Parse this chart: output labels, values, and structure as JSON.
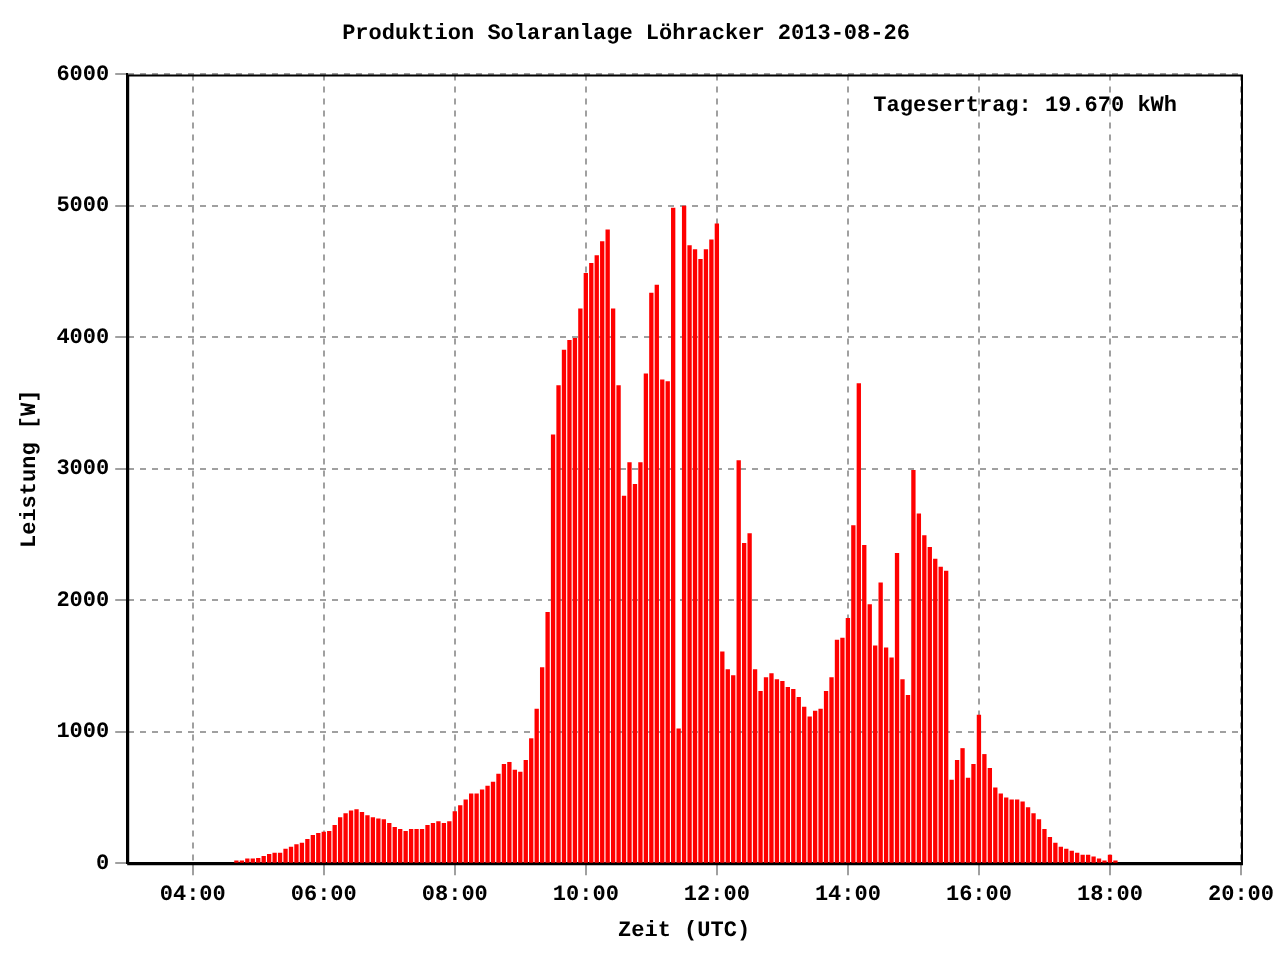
{
  "chart_data": {
    "type": "bar",
    "title": "Produktion Solaranlage Löhracker 2013-08-26",
    "xlabel": "Zeit (UTC)",
    "ylabel": "Leistung [W]",
    "annotations": [
      "Tagesertrag: 19.670 kWh"
    ],
    "x": [
      "2013-08-26T04:40",
      "2013-08-26T04:45",
      "2013-08-26T04:50",
      "2013-08-26T04:55",
      "2013-08-26T05:00",
      "2013-08-26T05:05",
      "2013-08-26T05:10",
      "2013-08-26T05:15",
      "2013-08-26T05:20",
      "2013-08-26T05:25",
      "2013-08-26T05:30",
      "2013-08-26T05:35",
      "2013-08-26T05:40",
      "2013-08-26T05:45",
      "2013-08-26T05:50",
      "2013-08-26T05:55",
      "2013-08-26T06:00",
      "2013-08-26T06:05",
      "2013-08-26T06:10",
      "2013-08-26T06:15",
      "2013-08-26T06:20",
      "2013-08-26T06:25",
      "2013-08-26T06:30",
      "2013-08-26T06:35",
      "2013-08-26T06:40",
      "2013-08-26T06:45",
      "2013-08-26T06:50",
      "2013-08-26T06:55",
      "2013-08-26T07:00",
      "2013-08-26T07:05",
      "2013-08-26T07:10",
      "2013-08-26T07:15",
      "2013-08-26T07:20",
      "2013-08-26T07:25",
      "2013-08-26T07:30",
      "2013-08-26T07:35",
      "2013-08-26T07:40",
      "2013-08-26T07:45",
      "2013-08-26T07:50",
      "2013-08-26T07:55",
      "2013-08-26T08:00",
      "2013-08-26T08:05",
      "2013-08-26T08:10",
      "2013-08-26T08:15",
      "2013-08-26T08:20",
      "2013-08-26T08:25",
      "2013-08-26T08:30",
      "2013-08-26T08:35",
      "2013-08-26T08:40",
      "2013-08-26T08:45",
      "2013-08-26T08:50",
      "2013-08-26T08:55",
      "2013-08-26T09:00",
      "2013-08-26T09:05",
      "2013-08-26T09:10",
      "2013-08-26T09:15",
      "2013-08-26T09:20",
      "2013-08-26T09:25",
      "2013-08-26T09:30",
      "2013-08-26T09:35",
      "2013-08-26T09:40",
      "2013-08-26T09:45",
      "2013-08-26T09:50",
      "2013-08-26T09:55",
      "2013-08-26T10:00",
      "2013-08-26T10:05",
      "2013-08-26T10:10",
      "2013-08-26T10:15",
      "2013-08-26T10:20",
      "2013-08-26T10:25",
      "2013-08-26T10:30",
      "2013-08-26T10:35",
      "2013-08-26T10:40",
      "2013-08-26T10:45",
      "2013-08-26T10:50",
      "2013-08-26T10:55",
      "2013-08-26T11:00",
      "2013-08-26T11:05",
      "2013-08-26T11:10",
      "2013-08-26T11:15",
      "2013-08-26T11:20",
      "2013-08-26T11:25",
      "2013-08-26T11:30",
      "2013-08-26T11:35",
      "2013-08-26T11:40",
      "2013-08-26T11:45",
      "2013-08-26T11:50",
      "2013-08-26T11:55",
      "2013-08-26T12:00",
      "2013-08-26T12:05",
      "2013-08-26T12:10",
      "2013-08-26T12:15",
      "2013-08-26T12:20",
      "2013-08-26T12:25",
      "2013-08-26T12:30",
      "2013-08-26T12:35",
      "2013-08-26T12:40",
      "2013-08-26T12:45",
      "2013-08-26T12:50",
      "2013-08-26T12:55",
      "2013-08-26T13:00",
      "2013-08-26T13:05",
      "2013-08-26T13:10",
      "2013-08-26T13:15",
      "2013-08-26T13:20",
      "2013-08-26T13:25",
      "2013-08-26T13:30",
      "2013-08-26T13:35",
      "2013-08-26T13:40",
      "2013-08-26T13:45",
      "2013-08-26T13:50",
      "2013-08-26T13:55",
      "2013-08-26T14:00",
      "2013-08-26T14:05",
      "2013-08-26T14:10",
      "2013-08-26T14:15",
      "2013-08-26T14:20",
      "2013-08-26T14:25",
      "2013-08-26T14:30",
      "2013-08-26T14:35",
      "2013-08-26T14:40",
      "2013-08-26T14:45",
      "2013-08-26T14:50",
      "2013-08-26T14:55",
      "2013-08-26T15:00",
      "2013-08-26T15:05",
      "2013-08-26T15:10",
      "2013-08-26T15:15",
      "2013-08-26T15:20",
      "2013-08-26T15:25",
      "2013-08-26T15:30",
      "2013-08-26T15:35",
      "2013-08-26T15:40",
      "2013-08-26T15:45",
      "2013-08-26T15:50",
      "2013-08-26T15:55",
      "2013-08-26T16:00",
      "2013-08-26T16:05",
      "2013-08-26T16:10",
      "2013-08-26T16:15",
      "2013-08-26T16:20",
      "2013-08-26T16:25",
      "2013-08-26T16:30",
      "2013-08-26T16:35",
      "2013-08-26T16:40",
      "2013-08-26T16:45",
      "2013-08-26T16:50",
      "2013-08-26T16:55",
      "2013-08-26T17:00",
      "2013-08-26T17:05",
      "2013-08-26T17:10",
      "2013-08-26T17:15",
      "2013-08-26T17:20",
      "2013-08-26T17:25",
      "2013-08-26T17:30",
      "2013-08-26T17:35",
      "2013-08-26T17:40",
      "2013-08-26T17:45",
      "2013-08-26T17:50",
      "2013-08-26T17:55",
      "2013-08-26T18:00",
      "2013-08-26T18:05"
    ],
    "values": [
      15,
      15,
      30,
      30,
      35,
      50,
      65,
      75,
      75,
      105,
      120,
      140,
      150,
      180,
      210,
      225,
      235,
      240,
      285,
      345,
      375,
      395,
      405,
      385,
      360,
      345,
      335,
      330,
      300,
      270,
      255,
      240,
      255,
      255,
      255,
      285,
      300,
      315,
      300,
      315,
      390,
      435,
      480,
      525,
      525,
      555,
      585,
      615,
      675,
      750,
      765,
      705,
      690,
      780,
      945,
      1170,
      1485,
      1905,
      3255,
      3630,
      3900,
      3975,
      3990,
      4215,
      4485,
      4560,
      4620,
      4725,
      4815,
      4215,
      3630,
      2790,
      3045,
      2880,
      3045,
      3720,
      4335,
      4395,
      3675,
      3660,
      4980,
      1020,
      4995,
      4695,
      4665,
      4590,
      4665,
      4740,
      4860,
      1605,
      1470,
      1425,
      3060,
      2430,
      2505,
      1470,
      1305,
      1410,
      1440,
      1395,
      1380,
      1335,
      1320,
      1260,
      1185,
      1110,
      1155,
      1170,
      1305,
      1410,
      1695,
      1710,
      1860,
      2565,
      3645,
      2415,
      1965,
      1650,
      2130,
      1635,
      1560,
      2355,
      1395,
      1275,
      2985,
      2655,
      2490,
      2400,
      2310,
      2250,
      2220,
      630,
      780,
      870,
      645,
      750,
      1125,
      825,
      720,
      570,
      525,
      495,
      480,
      480,
      465,
      420,
      375,
      330,
      255,
      195,
      150,
      120,
      105,
      90,
      75,
      60,
      60,
      45,
      30,
      15,
      60,
      15
    ],
    "color": "#ff0000",
    "xlim": [
      "2013-08-26T03:00",
      "2013-08-26T20:00"
    ],
    "xticks": [
      {
        "value": "2013-08-26T04:00",
        "label": "04:00"
      },
      {
        "value": "2013-08-26T06:00",
        "label": "06:00"
      },
      {
        "value": "2013-08-26T08:00",
        "label": "08:00"
      },
      {
        "value": "2013-08-26T10:00",
        "label": "10:00"
      },
      {
        "value": "2013-08-26T12:00",
        "label": "12:00"
      },
      {
        "value": "2013-08-26T14:00",
        "label": "14:00"
      },
      {
        "value": "2013-08-26T16:00",
        "label": "16:00"
      },
      {
        "value": "2013-08-26T18:00",
        "label": "18:00"
      },
      {
        "value": "2013-08-26T20:00",
        "label": "20:00"
      }
    ],
    "ylim": [
      0,
      6000
    ],
    "yticks": [
      0,
      1000,
      2000,
      3000,
      4000,
      5000,
      6000
    ],
    "grid": true,
    "legend": false
  }
}
